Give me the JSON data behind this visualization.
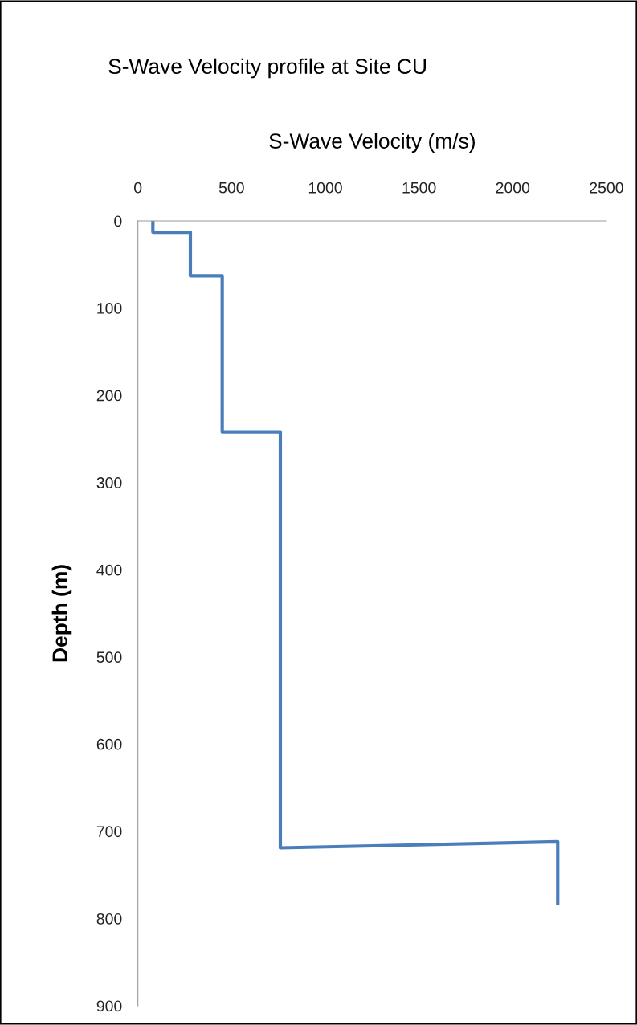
{
  "chart_data": {
    "type": "line",
    "title": "S-Wave Velocity profile at Site CU",
    "xlabel": "S-Wave Velocity (m/s)",
    "ylabel": "Depth (m)",
    "series": [
      {
        "color": "#4a7ebb",
        "x": [
          80,
          80,
          280,
          280,
          450,
          450,
          760,
          760,
          2240,
          2240
        ],
        "values": [
          0,
          13,
          13,
          63,
          63,
          242,
          242,
          719,
          712,
          782
        ]
      }
    ],
    "xlim": [
      0,
      2500
    ],
    "xticks": [
      0,
      500,
      1000,
      1500,
      2000,
      2500
    ],
    "ylim": [
      900,
      0
    ],
    "yticks": [
      0,
      100,
      200,
      300,
      400,
      500,
      600,
      700,
      800,
      900
    ],
    "grid": false,
    "legend": false,
    "marker": "none",
    "line_style": "solid"
  }
}
